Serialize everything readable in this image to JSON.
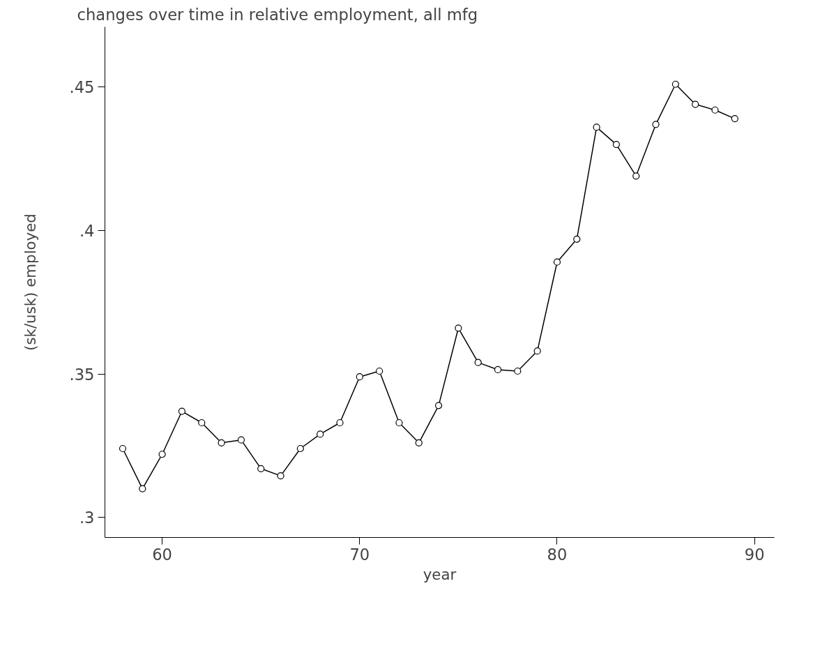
{
  "chart_data": {
    "type": "line",
    "title": "changes over time in relative employment, all mfg",
    "xlabel": "year",
    "ylabel": "(sk/usk) employed",
    "x": [
      58,
      59,
      60,
      61,
      62,
      63,
      64,
      65,
      66,
      67,
      68,
      69,
      70,
      71,
      72,
      73,
      74,
      75,
      76,
      77,
      78,
      79,
      80,
      81,
      82,
      83,
      84,
      85,
      86,
      87,
      88,
      89
    ],
    "series": [
      {
        "color": "#000000",
        "values": [
          0.324,
          0.31,
          0.322,
          0.337,
          0.333,
          0.326,
          0.327,
          0.317,
          0.3145,
          0.324,
          0.329,
          0.333,
          0.349,
          0.351,
          0.333,
          0.326,
          0.339,
          0.366,
          0.354,
          0.3515,
          0.351,
          0.358,
          0.389,
          0.397,
          0.436,
          0.43,
          0.419,
          0.437,
          0.451,
          0.444,
          0.442,
          0.439
        ]
      }
    ],
    "xlim": [
      57.1,
      91
    ],
    "xticks": [
      60,
      70,
      80,
      90
    ],
    "ylim": [
      0.293,
      0.471
    ],
    "yticks": [
      {
        "value": 0.3,
        "label": ".3"
      },
      {
        "value": 0.35,
        "label": ".35"
      },
      {
        "value": 0.4,
        "label": ".4"
      },
      {
        "value": 0.45,
        "label": ".45"
      }
    ],
    "marker": "circle",
    "line_style": "solid",
    "grid": false
  }
}
